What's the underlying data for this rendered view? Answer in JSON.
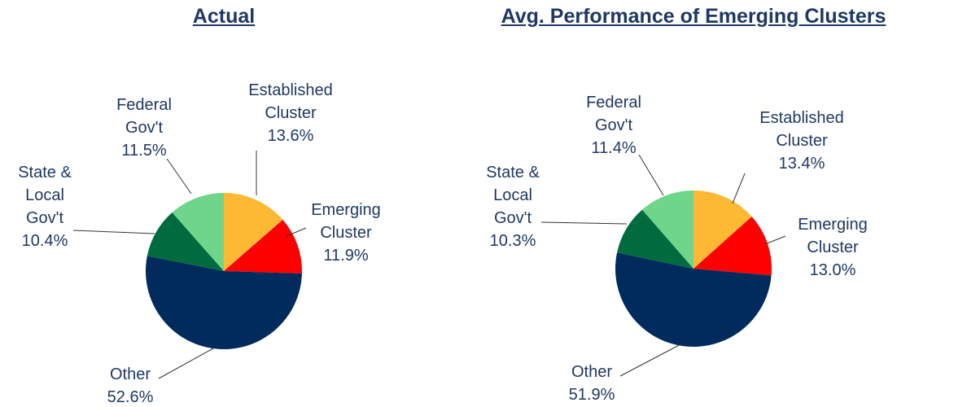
{
  "chart_data": [
    {
      "type": "pie",
      "title": "Actual",
      "categories": [
        "Established Cluster",
        "Emerging Cluster",
        "Other",
        "State & Local Gov't",
        "Federal Gov't"
      ],
      "values": [
        13.6,
        11.9,
        52.6,
        10.4,
        11.5
      ],
      "value_labels": [
        "13.6%",
        "11.9%",
        "52.6%",
        "10.4%",
        "11.5%"
      ],
      "colors": [
        "#FDB933",
        "#FF0000",
        "#002B5C",
        "#006B3F",
        "#6FD58A"
      ]
    },
    {
      "type": "pie",
      "title": "Avg. Performance of Emerging Clusters",
      "categories": [
        "Established Cluster",
        "Emerging Cluster",
        "Other",
        "State & Local Gov't",
        "Federal Gov't"
      ],
      "values": [
        13.4,
        13.0,
        51.9,
        10.3,
        11.4
      ],
      "value_labels": [
        "13.4%",
        "13.0%",
        "51.9%",
        "10.3%",
        "11.4%"
      ],
      "colors": [
        "#FDB933",
        "#FF0000",
        "#002B5C",
        "#006B3F",
        "#6FD58A"
      ]
    }
  ]
}
